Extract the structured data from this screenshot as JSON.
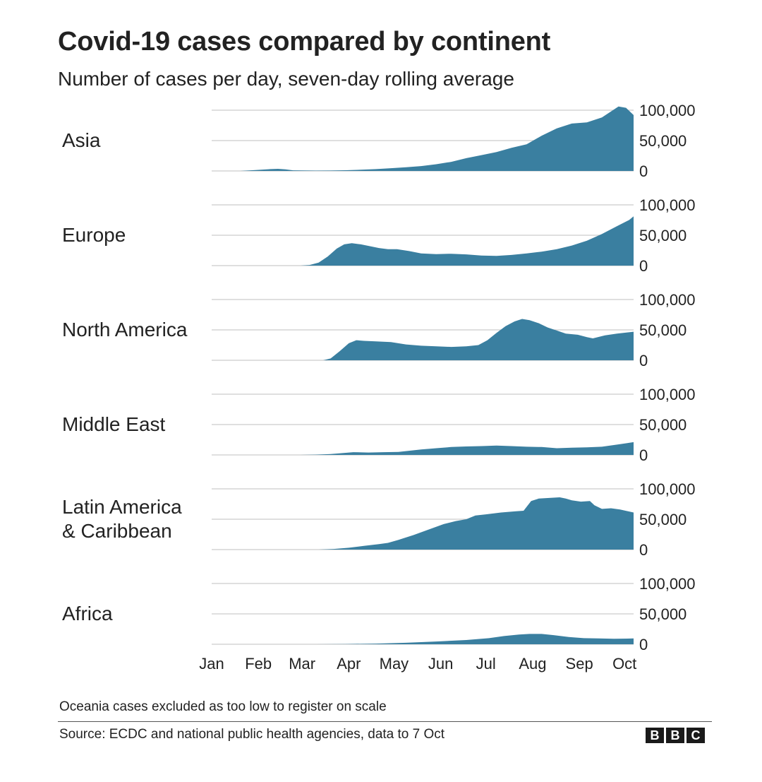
{
  "title": "Covid-19 cases compared by continent",
  "subtitle": "Number of cases per day, seven-day rolling average",
  "note": "Oceania cases excluded as too low to register on scale",
  "source": "Source: ECDC and national public health agencies, data to 7 Oct",
  "logo": [
    "B",
    "B",
    "C"
  ],
  "colors": {
    "area": "#3a7fa0",
    "grid": "#cccccc",
    "text": "#222222"
  },
  "chart_data": {
    "type": "area",
    "small_multiples": true,
    "x_unit": "day of year 2020 (1 = 1 Jan)",
    "x_range": [
      1,
      281
    ],
    "ylim": [
      0,
      100000
    ],
    "y_ticks": [
      0,
      50000,
      100000
    ],
    "y_tick_labels": [
      "0",
      "50,000",
      "100,000"
    ],
    "month_ticks": [
      {
        "label": "Jan",
        "day": 1
      },
      {
        "label": "Feb",
        "day": 32
      },
      {
        "label": "Mar",
        "day": 61
      },
      {
        "label": "Apr",
        "day": 92
      },
      {
        "label": "May",
        "day": 122
      },
      {
        "label": "Jun",
        "day": 153
      },
      {
        "label": "Jul",
        "day": 183
      },
      {
        "label": "Aug",
        "day": 214
      },
      {
        "label": "Sep",
        "day": 245
      },
      {
        "label": "Oct",
        "day": 275
      }
    ],
    "series": [
      {
        "name": "Asia",
        "label_lines": [
          "Asia"
        ],
        "points": [
          [
            1,
            0
          ],
          [
            20,
            0
          ],
          [
            30,
            1500
          ],
          [
            40,
            3000
          ],
          [
            45,
            3500
          ],
          [
            50,
            2500
          ],
          [
            55,
            1000
          ],
          [
            60,
            800
          ],
          [
            70,
            600
          ],
          [
            80,
            700
          ],
          [
            90,
            1200
          ],
          [
            100,
            2000
          ],
          [
            110,
            3000
          ],
          [
            120,
            4500
          ],
          [
            130,
            6000
          ],
          [
            140,
            8000
          ],
          [
            150,
            11000
          ],
          [
            160,
            15000
          ],
          [
            170,
            21000
          ],
          [
            180,
            26000
          ],
          [
            190,
            31000
          ],
          [
            200,
            38000
          ],
          [
            210,
            44000
          ],
          [
            220,
            58000
          ],
          [
            230,
            70000
          ],
          [
            240,
            78000
          ],
          [
            250,
            80000
          ],
          [
            260,
            88000
          ],
          [
            266,
            98000
          ],
          [
            271,
            106000
          ],
          [
            276,
            104000
          ],
          [
            281,
            92000
          ]
        ]
      },
      {
        "name": "Europe",
        "label_lines": [
          "Europe"
        ],
        "points": [
          [
            1,
            0
          ],
          [
            60,
            0
          ],
          [
            66,
            1000
          ],
          [
            72,
            5000
          ],
          [
            78,
            15000
          ],
          [
            84,
            28000
          ],
          [
            89,
            35000
          ],
          [
            94,
            37000
          ],
          [
            100,
            35000
          ],
          [
            106,
            32000
          ],
          [
            112,
            29000
          ],
          [
            118,
            27000
          ],
          [
            124,
            27000
          ],
          [
            132,
            24000
          ],
          [
            140,
            20000
          ],
          [
            150,
            19000
          ],
          [
            160,
            19500
          ],
          [
            170,
            18500
          ],
          [
            180,
            16500
          ],
          [
            190,
            16000
          ],
          [
            200,
            17500
          ],
          [
            210,
            20000
          ],
          [
            220,
            23000
          ],
          [
            230,
            27000
          ],
          [
            240,
            33000
          ],
          [
            250,
            41000
          ],
          [
            260,
            52000
          ],
          [
            270,
            65000
          ],
          [
            278,
            75000
          ],
          [
            281,
            81000
          ]
        ]
      },
      {
        "name": "North America",
        "label_lines": [
          "North America"
        ],
        "points": [
          [
            1,
            0
          ],
          [
            75,
            0
          ],
          [
            80,
            3000
          ],
          [
            86,
            15000
          ],
          [
            92,
            28000
          ],
          [
            97,
            33000
          ],
          [
            102,
            32000
          ],
          [
            110,
            31000
          ],
          [
            120,
            30000
          ],
          [
            130,
            26000
          ],
          [
            140,
            24000
          ],
          [
            150,
            23000
          ],
          [
            160,
            22000
          ],
          [
            170,
            23000
          ],
          [
            178,
            25000
          ],
          [
            184,
            33000
          ],
          [
            190,
            45000
          ],
          [
            196,
            56000
          ],
          [
            202,
            64000
          ],
          [
            207,
            68000
          ],
          [
            212,
            66000
          ],
          [
            218,
            61000
          ],
          [
            224,
            54000
          ],
          [
            230,
            49000
          ],
          [
            236,
            44000
          ],
          [
            244,
            42000
          ],
          [
            250,
            38000
          ],
          [
            254,
            36000
          ],
          [
            262,
            41000
          ],
          [
            270,
            44000
          ],
          [
            281,
            47000
          ]
        ]
      },
      {
        "name": "Middle East",
        "label_lines": [
          "Middle East"
        ],
        "points": [
          [
            1,
            0
          ],
          [
            60,
            0
          ],
          [
            70,
            500
          ],
          [
            80,
            1500
          ],
          [
            90,
            3500
          ],
          [
            95,
            4500
          ],
          [
            105,
            4000
          ],
          [
            115,
            4500
          ],
          [
            125,
            5000
          ],
          [
            140,
            9000
          ],
          [
            150,
            11000
          ],
          [
            160,
            13000
          ],
          [
            170,
            14000
          ],
          [
            180,
            14500
          ],
          [
            190,
            15500
          ],
          [
            200,
            14500
          ],
          [
            210,
            13500
          ],
          [
            220,
            13000
          ],
          [
            230,
            11000
          ],
          [
            240,
            12000
          ],
          [
            250,
            12500
          ],
          [
            260,
            13500
          ],
          [
            270,
            17000
          ],
          [
            281,
            21000
          ]
        ]
      },
      {
        "name": "Latin America & Caribbean",
        "label_lines": [
          "Latin America",
          "& Caribbean"
        ],
        "points": [
          [
            1,
            0
          ],
          [
            72,
            0
          ],
          [
            82,
            1000
          ],
          [
            92,
            3000
          ],
          [
            102,
            6000
          ],
          [
            112,
            9000
          ],
          [
            118,
            11000
          ],
          [
            125,
            16000
          ],
          [
            135,
            24000
          ],
          [
            145,
            33000
          ],
          [
            155,
            42000
          ],
          [
            163,
            47000
          ],
          [
            170,
            50000
          ],
          [
            176,
            56000
          ],
          [
            183,
            58000
          ],
          [
            193,
            61000
          ],
          [
            203,
            63000
          ],
          [
            208,
            64000
          ],
          [
            213,
            80000
          ],
          [
            218,
            84000
          ],
          [
            225,
            85000
          ],
          [
            232,
            86000
          ],
          [
            236,
            84000
          ],
          [
            240,
            81000
          ],
          [
            246,
            79000
          ],
          [
            252,
            80000
          ],
          [
            255,
            73000
          ],
          [
            260,
            67000
          ],
          [
            266,
            68000
          ],
          [
            272,
            66000
          ],
          [
            281,
            61000
          ]
        ]
      },
      {
        "name": "Africa",
        "label_lines": [
          "Africa"
        ],
        "points": [
          [
            1,
            0
          ],
          [
            70,
            0
          ],
          [
            90,
            300
          ],
          [
            110,
            1000
          ],
          [
            130,
            2500
          ],
          [
            150,
            4500
          ],
          [
            170,
            7000
          ],
          [
            185,
            10000
          ],
          [
            195,
            13500
          ],
          [
            205,
            16000
          ],
          [
            212,
            17000
          ],
          [
            220,
            17000
          ],
          [
            228,
            15000
          ],
          [
            238,
            12000
          ],
          [
            248,
            10000
          ],
          [
            258,
            9500
          ],
          [
            268,
            9000
          ],
          [
            281,
            9500
          ]
        ]
      }
    ]
  }
}
